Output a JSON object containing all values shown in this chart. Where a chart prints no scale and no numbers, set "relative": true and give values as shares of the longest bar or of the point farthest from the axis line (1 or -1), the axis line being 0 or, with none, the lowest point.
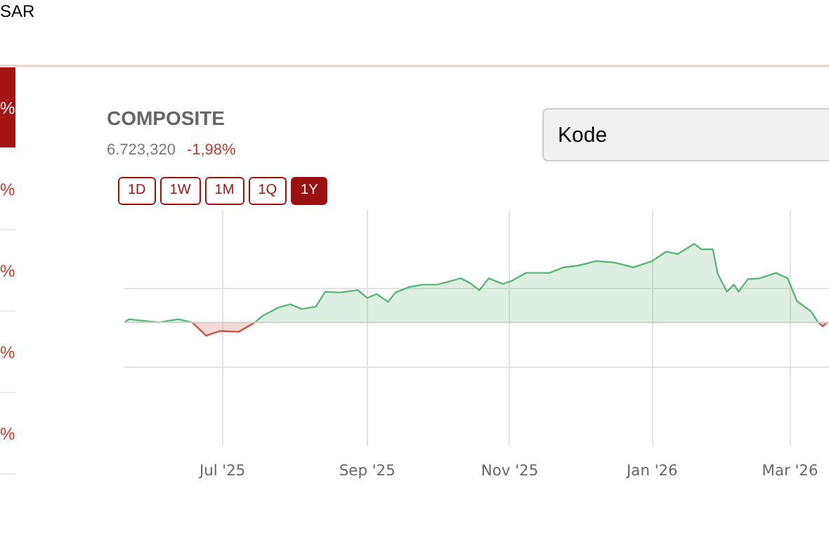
{
  "chart_data": {
    "type": "area",
    "title": "COMPOSITE",
    "subtitle": "6.723,320",
    "annotations": [
      "-1,98%",
      "1D",
      "1W",
      "1M",
      "1Q",
      "1Y",
      "Kode",
      "SAR",
      "%",
      "%",
      "%",
      "%",
      "%"
    ],
    "relative": true,
    "grid": true,
    "x": [
      "2025-05-20",
      "2025-05-22",
      "2025-05-28",
      "2025-06-04",
      "2025-06-12",
      "2025-06-18",
      "2025-06-24",
      "2025-06-30",
      "2025-07-08",
      "2025-07-15",
      "2025-07-18",
      "2025-07-25",
      "2025-07-30",
      "2025-08-04",
      "2025-08-10",
      "2025-08-14",
      "2025-08-20",
      "2025-08-28",
      "2025-09-01",
      "2025-09-05",
      "2025-09-10",
      "2025-09-13",
      "2025-09-19",
      "2025-09-25",
      "2025-10-01",
      "2025-10-11",
      "2025-10-15",
      "2025-10-19",
      "2025-10-23",
      "2025-10-29",
      "2025-11-02",
      "2025-11-08",
      "2025-11-18",
      "2025-11-24",
      "2025-11-30",
      "2025-12-08",
      "2025-12-16",
      "2025-12-24",
      "2026-01-01",
      "2026-01-07",
      "2026-01-12",
      "2026-01-19",
      "2026-01-22",
      "2026-01-27",
      "2026-01-29",
      "2026-02-02",
      "2026-02-05",
      "2026-02-07",
      "2026-02-11",
      "2026-02-16",
      "2026-02-23",
      "2026-02-28",
      "2026-03-04",
      "2026-03-10",
      "2026-03-13",
      "2026-03-15",
      "2026-03-17"
    ],
    "xlim": [
      "2025-05-20",
      "2026-03-18"
    ],
    "xticks": [
      {
        "value": "2025-07-01",
        "label": "Jul '25"
      },
      {
        "value": "2025-09-01",
        "label": "Sep '25"
      },
      {
        "value": "2025-11-01",
        "label": "Nov '25"
      },
      {
        "value": "2026-01-01",
        "label": "Jan '26"
      },
      {
        "value": "2026-03-01",
        "label": "Mar '26"
      }
    ],
    "series": [
      {
        "color": "#5fb67d",
        "values": [
          0,
          0.04,
          0.02,
          0,
          0.04,
          0,
          null,
          null,
          null,
          0,
          0.08,
          0.19,
          0.23,
          0.17,
          0.2,
          0.39,
          0.38,
          0.41,
          0.31,
          0.36,
          0.26,
          0.38,
          0.45,
          0.48,
          0.48,
          0.56,
          0.5,
          0.41,
          0.56,
          0.49,
          0.53,
          0.63,
          0.63,
          0.7,
          0.72,
          0.78,
          0.76,
          0.7,
          0.78,
          0.9,
          0.87,
          1,
          0.93,
          0.93,
          0.62,
          0.39,
          0.48,
          0.39,
          0.55,
          0.56,
          0.63,
          0.56,
          0.27,
          0.14,
          0,
          null,
          0
        ]
      },
      {
        "color": "#c8574a",
        "values": [
          0,
          null,
          null,
          0,
          null,
          0,
          -0.17,
          -0.11,
          -0.12,
          0,
          null,
          null,
          null,
          null,
          null,
          null,
          null,
          null,
          null,
          null,
          null,
          null,
          null,
          null,
          null,
          null,
          null,
          null,
          null,
          null,
          null,
          null,
          null,
          null,
          null,
          null,
          null,
          null,
          null,
          null,
          null,
          null,
          null,
          null,
          null,
          null,
          null,
          null,
          null,
          null,
          null,
          null,
          null,
          null,
          0,
          -0.05,
          0
        ]
      }
    ]
  }
}
